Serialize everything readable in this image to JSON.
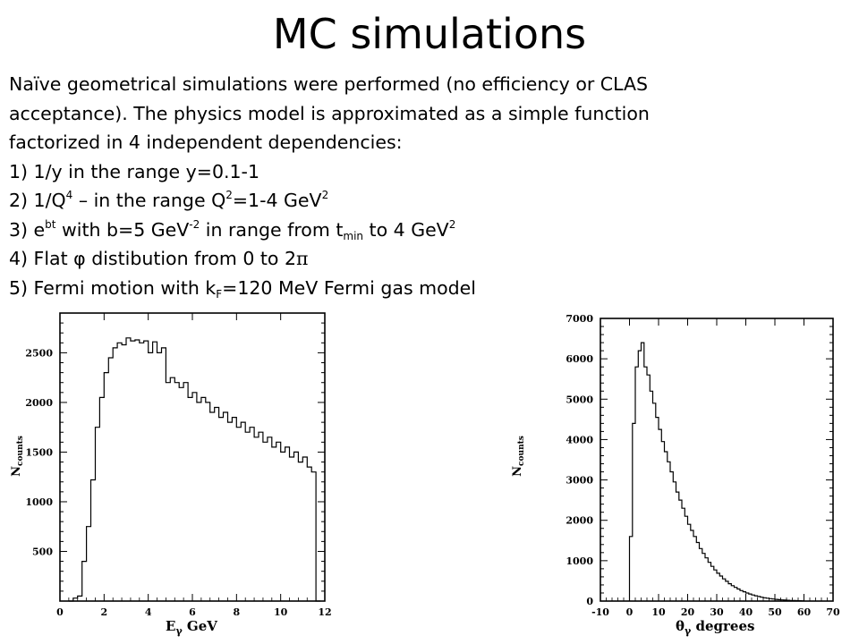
{
  "slide": {
    "title": "MC simulations",
    "intro_lines": [
      "Naïve geometrical simulations were performed (no efficiency or CLAS",
      "acceptance). The physics model is approximated as a simple function",
      "factorized in 4 independent dependencies:"
    ],
    "items": {
      "i1": "1) 1/y in the range y=0.1-1",
      "i2": {
        "a": "2) 1/Q",
        "b": "4",
        "c": " – in the range Q",
        "d": "2",
        "e": "=1-4 GeV",
        "f": "2"
      },
      "i3": {
        "a": "3) e",
        "b": "bt",
        "c": " with b=5 GeV",
        "d": "-2",
        "e": " in range from t",
        "f": "min",
        "g": " to 4 GeV",
        "h": "2"
      },
      "i4": {
        "a": "4) Flat φ distibution from 0 to 2",
        "b": "π"
      },
      "i5": {
        "a": "5) Fermi motion with k",
        "b": "F",
        "c": "=120 MeV Fermi gas model"
      }
    }
  },
  "chart_data": [
    {
      "type": "histogram",
      "title": "",
      "xlabel": {
        "main": "E",
        "sub": "γ",
        "unit": " GeV"
      },
      "ylabel": {
        "main": "N",
        "sub": "counts"
      },
      "xlim": [
        0,
        12
      ],
      "ylim": [
        0,
        2900
      ],
      "xticks": [
        0,
        2,
        4,
        6,
        8,
        10,
        12
      ],
      "yticks": [
        500,
        1000,
        1500,
        2000,
        2500
      ],
      "bin_width": 0.2,
      "bin_start": 0.4,
      "values": [
        0,
        30,
        50,
        400,
        750,
        1220,
        1750,
        2050,
        2300,
        2450,
        2550,
        2600,
        2580,
        2650,
        2620,
        2630,
        2600,
        2620,
        2500,
        2610,
        2500,
        2550,
        2200,
        2250,
        2200,
        2150,
        2200,
        2050,
        2100,
        2000,
        2050,
        2000,
        1900,
        1950,
        1850,
        1900,
        1800,
        1850,
        1750,
        1800,
        1700,
        1750,
        1650,
        1700,
        1600,
        1650,
        1550,
        1600,
        1500,
        1550,
        1450,
        1500,
        1400,
        1450,
        1350,
        1300,
        0
      ]
    },
    {
      "type": "histogram",
      "title": "",
      "xlabel": {
        "main": "θ",
        "sub": "γ",
        "unit": " degrees"
      },
      "ylabel": {
        "main": "N",
        "sub": "counts"
      },
      "xlim": [
        -10,
        70
      ],
      "ylim": [
        0,
        7000
      ],
      "xticks": [
        -10,
        0,
        10,
        20,
        30,
        40,
        50,
        60,
        70
      ],
      "yticks": [
        0,
        1000,
        2000,
        3000,
        4000,
        5000,
        6000,
        7000
      ],
      "bin_width": 1,
      "bin_start": 0,
      "values": [
        1600,
        4400,
        5800,
        6200,
        6400,
        5800,
        5600,
        5200,
        4900,
        4550,
        4250,
        3950,
        3700,
        3450,
        3200,
        2950,
        2700,
        2500,
        2300,
        2100,
        1900,
        1750,
        1600,
        1450,
        1300,
        1180,
        1070,
        960,
        860,
        770,
        690,
        620,
        550,
        490,
        430,
        380,
        340,
        300,
        260,
        230,
        200,
        175,
        150,
        130,
        112,
        96,
        82,
        70,
        60,
        50,
        42,
        35,
        29,
        24,
        20,
        16,
        13,
        10,
        8,
        6
      ]
    }
  ]
}
